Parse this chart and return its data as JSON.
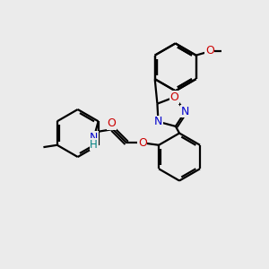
{
  "bg_color": "#ebebeb",
  "atom_colors": {
    "C": "#000000",
    "N": "#0000cc",
    "O": "#cc0000",
    "H": "#008080"
  },
  "bond_color": "#000000",
  "bond_width": 1.6,
  "font_size": 8.5,
  "fig_size": [
    3.0,
    3.0
  ],
  "dpi": 100,
  "xlim": [
    0,
    10
  ],
  "ylim": [
    0,
    10
  ]
}
